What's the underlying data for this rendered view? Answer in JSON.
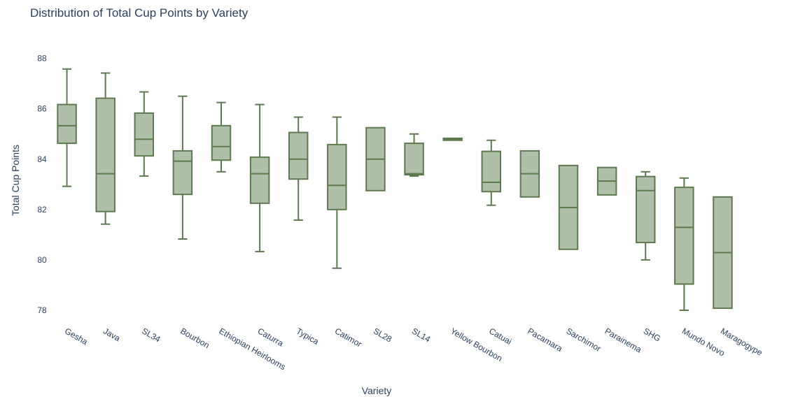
{
  "chart_data": {
    "type": "box",
    "title": "Distribution of Total Cup Points by Variety",
    "xlabel": "Variety",
    "ylabel": "Total Cup Points",
    "ylim": [
      77.5,
      88.6
    ],
    "yticks": [
      78,
      80,
      82,
      84,
      86,
      88
    ],
    "grid": false,
    "legend": "none",
    "colors": {
      "box_fill": "#b0bfa9",
      "box_line": "#5d7a4f",
      "text": "#2a3f5f"
    },
    "categories": [
      "Gesha",
      "Java",
      "SL34",
      "Bourbon",
      "Ethiopian Heirlooms",
      "Caturra",
      "Typica",
      "Catimor",
      "SL28",
      "SL14",
      "Yellow Bourbon",
      "Catuai",
      "Pacamara",
      "Sarchimor",
      "Parainema",
      "SHG",
      "Mundo Novo",
      "Maragogype"
    ],
    "boxes": [
      {
        "min": 82.92,
        "q1": 84.63,
        "median": 85.33,
        "q3": 86.17,
        "max": 87.58
      },
      {
        "min": 81.42,
        "q1": 81.92,
        "median": 83.42,
        "q3": 86.42,
        "max": 87.42
      },
      {
        "min": 83.33,
        "q1": 84.13,
        "median": 84.79,
        "q3": 85.83,
        "max": 86.67
      },
      {
        "min": 80.83,
        "q1": 82.6,
        "median": 83.92,
        "q3": 84.33,
        "max": 86.5
      },
      {
        "min": 83.5,
        "q1": 83.96,
        "median": 84.5,
        "q3": 85.33,
        "max": 86.25
      },
      {
        "min": 80.33,
        "q1": 82.25,
        "median": 83.42,
        "q3": 84.08,
        "max": 86.17
      },
      {
        "min": 81.58,
        "q1": 83.21,
        "median": 84.0,
        "q3": 85.06,
        "max": 85.67
      },
      {
        "min": 79.67,
        "q1": 82.0,
        "median": 82.96,
        "q3": 84.58,
        "max": 85.67
      },
      {
        "min": 82.75,
        "q1": 82.75,
        "median": 84.0,
        "q3": 85.25,
        "max": 85.25
      },
      {
        "min": 83.33,
        "q1": 83.38,
        "median": 83.42,
        "q3": 84.63,
        "max": 85.0
      },
      {
        "min": 84.75,
        "q1": 84.75,
        "median": 84.79,
        "q3": 84.83,
        "max": 84.83
      },
      {
        "min": 82.17,
        "q1": 82.71,
        "median": 83.08,
        "q3": 84.31,
        "max": 84.75
      },
      {
        "min": 82.5,
        "q1": 82.5,
        "median": 83.42,
        "q3": 84.33,
        "max": 84.33
      },
      {
        "min": 80.42,
        "q1": 80.42,
        "median": 82.08,
        "q3": 83.75,
        "max": 83.75
      },
      {
        "min": 82.58,
        "q1": 82.58,
        "median": 83.13,
        "q3": 83.67,
        "max": 83.67
      },
      {
        "min": 80.0,
        "q1": 80.69,
        "median": 82.75,
        "q3": 83.31,
        "max": 83.5
      },
      {
        "min": 78.0,
        "q1": 79.04,
        "median": 81.29,
        "q3": 82.88,
        "max": 83.25
      },
      {
        "min": 78.08,
        "q1": 78.08,
        "median": 80.29,
        "q3": 82.5,
        "max": 82.5
      }
    ]
  }
}
